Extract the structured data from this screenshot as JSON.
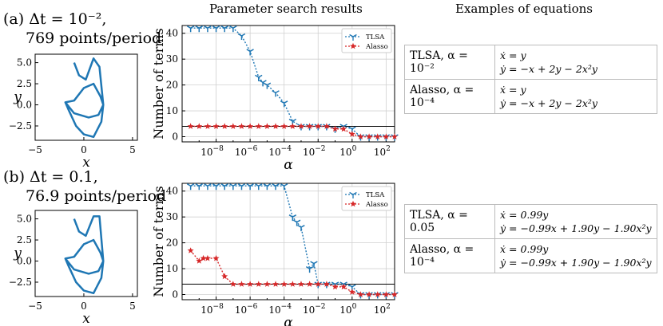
{
  "headers": {
    "col2": "Parameter search results",
    "col3": "Examples of equations"
  },
  "rows": [
    {
      "label_line1": "(a) Δt = 10⁻²,",
      "label_line2": "769 points/period",
      "table": [
        {
          "method": "TLSA, α = 10⁻²",
          "eq1": "ẋ = y",
          "eq2": "ẏ = −x + 2y − 2x²y"
        },
        {
          "method": "Alasso, α = 10⁻⁴",
          "eq1": "ẋ = y",
          "eq2": "ẏ = −x + 2y − 2x²y"
        }
      ]
    },
    {
      "label_line1": "(b) Δt = 0.1,",
      "label_line2": "76.9 points/period",
      "table": [
        {
          "method": "TLSA, α = 0.05",
          "eq1": "ẋ = 0.99y",
          "eq2": "ẏ = −0.99x + 1.90y − 1.90x²y"
        },
        {
          "method": "Alasso, α = 10⁻⁴",
          "eq1": "ẋ = 0.99y",
          "eq2": "ẏ = −0.99x + 1.90y − 1.90x²y"
        }
      ]
    }
  ],
  "chart_data": [
    {
      "type": "line",
      "panel": "a-phase",
      "xlabel": "x",
      "ylabel": "y",
      "xlim": [
        -5,
        5.5
      ],
      "ylim": [
        -4.2,
        6
      ],
      "xticks": [
        "−5",
        "0",
        "5"
      ],
      "yticks": [
        "−2.5",
        "0.0",
        "2.5",
        "5.0"
      ],
      "series": [
        {
          "color": "#1f77b4",
          "points": [
            [
              -1.0,
              5.0
            ],
            [
              -0.5,
              3.5
            ],
            [
              0.2,
              3.0
            ],
            [
              1.0,
              5.5
            ],
            [
              1.6,
              4.5
            ],
            [
              2.0,
              0.0
            ],
            [
              1.5,
              -1.2
            ],
            [
              0.5,
              -1.5
            ],
            [
              -1.0,
              -1.0
            ],
            [
              -1.9,
              0.3
            ],
            [
              -1.6,
              -0.5
            ],
            [
              -0.8,
              -2.5
            ],
            [
              0.0,
              -3.5
            ],
            [
              1.0,
              -3.8
            ],
            [
              1.8,
              -2.0
            ],
            [
              2.0,
              0.0
            ],
            [
              1.7,
              1.0
            ],
            [
              1.0,
              2.5
            ],
            [
              0.0,
              2.0
            ],
            [
              -1.0,
              0.5
            ],
            [
              -1.9,
              0.3
            ]
          ]
        }
      ]
    },
    {
      "type": "line",
      "panel": "a-search",
      "xlabel": "α",
      "ylabel": "Number of terms",
      "xlim": [
        -10,
        2.5
      ],
      "ylim": [
        -2,
        43
      ],
      "log_x": true,
      "xtick_exps": [
        "-8",
        "-6",
        "-4",
        "-2",
        "0",
        "2"
      ],
      "yticks": [
        "0",
        "10",
        "20",
        "30",
        "40"
      ],
      "legend_position": "top-right",
      "grid": true,
      "hline": 4,
      "series": [
        {
          "name": "TLSA",
          "color": "#1f77b4",
          "marker": "tri",
          "x": [
            -9.5,
            -9,
            -8.5,
            -8,
            -7.5,
            -7,
            -6.5,
            -6,
            -5.5,
            -5.25,
            -5,
            -4.5,
            -4,
            -3.5,
            -3,
            -2.5,
            -2,
            -1.5,
            -1,
            -0.5,
            0,
            0.5,
            1,
            1.5,
            2,
            2.5
          ],
          "values": [
            42,
            42,
            42,
            42,
            42,
            42,
            39,
            33,
            23,
            21,
            20,
            17,
            13,
            6,
            4,
            4,
            4,
            4,
            3,
            4,
            3,
            0,
            0,
            0,
            0,
            0
          ]
        },
        {
          "name": "Alasso",
          "color": "#d62728",
          "marker": "star",
          "x": [
            -9.5,
            -9,
            -8.5,
            -8,
            -7.5,
            -7,
            -6.5,
            -6,
            -5.5,
            -5,
            -4.5,
            -4,
            -3.5,
            -3,
            -2.5,
            -2,
            -1.5,
            -1,
            -0.5,
            0,
            0.5,
            1,
            1.5,
            2,
            2.5
          ],
          "values": [
            4,
            4,
            4,
            4,
            4,
            4,
            4,
            4,
            4,
            4,
            4,
            4,
            4,
            4,
            4,
            4,
            4,
            3,
            3,
            1,
            0,
            0,
            0,
            0,
            0
          ]
        }
      ]
    },
    {
      "type": "line",
      "panel": "b-phase",
      "xlabel": "x",
      "ylabel": "y",
      "xlim": [
        -5,
        5.5
      ],
      "ylim": [
        -4.2,
        6
      ],
      "xticks": [
        "−5",
        "0",
        "5"
      ],
      "yticks": [
        "−2.5",
        "0.0",
        "2.5",
        "5.0"
      ],
      "series": [
        {
          "color": "#1f77b4",
          "points": [
            [
              -1.0,
              5.0
            ],
            [
              -0.5,
              3.5
            ],
            [
              0.2,
              3.0
            ],
            [
              1.0,
              5.3
            ],
            [
              1.6,
              5.3
            ],
            [
              2.0,
              0.0
            ],
            [
              1.5,
              -1.2
            ],
            [
              0.5,
              -1.5
            ],
            [
              -1.0,
              -1.0
            ],
            [
              -1.9,
              0.3
            ],
            [
              -1.6,
              -0.5
            ],
            [
              -0.8,
              -2.5
            ],
            [
              0.0,
              -3.5
            ],
            [
              1.0,
              -3.8
            ],
            [
              1.8,
              -2.0
            ],
            [
              2.0,
              0.0
            ],
            [
              1.7,
              1.0
            ],
            [
              1.0,
              2.5
            ],
            [
              0.0,
              2.0
            ],
            [
              -1.0,
              0.5
            ],
            [
              -1.9,
              0.3
            ]
          ]
        }
      ]
    },
    {
      "type": "line",
      "panel": "b-search",
      "xlabel": "α",
      "ylabel": "Number of terms",
      "xlim": [
        -10,
        2.5
      ],
      "ylim": [
        -2,
        43
      ],
      "log_x": true,
      "xtick_exps": [
        "-8",
        "-6",
        "-4",
        "-2",
        "0",
        "2"
      ],
      "yticks": [
        "0",
        "10",
        "20",
        "30",
        "40"
      ],
      "legend_position": "top-right",
      "grid": true,
      "hline": 4,
      "series": [
        {
          "name": "TLSA",
          "color": "#1f77b4",
          "marker": "tri",
          "x": [
            -9.5,
            -9,
            -8.5,
            -8,
            -7.5,
            -7,
            -6.5,
            -6,
            -5.5,
            -5,
            -4.5,
            -4,
            -3.5,
            -3.25,
            -3,
            -2.5,
            -2.25,
            -2,
            -1.5,
            -1,
            -0.5,
            0,
            0.5,
            1,
            1.5,
            2,
            2.5
          ],
          "values": [
            42,
            42,
            42,
            42,
            42,
            42,
            42,
            42,
            42,
            42,
            42,
            42,
            30,
            28,
            26,
            10,
            12,
            4,
            4,
            4,
            4,
            3,
            0,
            0,
            0,
            0,
            0
          ]
        },
        {
          "name": "Alasso",
          "color": "#d62728",
          "marker": "star",
          "x": [
            -9.5,
            -9,
            -8.75,
            -8.5,
            -8,
            -7.5,
            -7,
            -6.5,
            -6,
            -5.5,
            -5,
            -4.5,
            -4,
            -3.5,
            -3,
            -2.5,
            -2,
            -1.5,
            -1,
            -0.5,
            0,
            0.5,
            1,
            1.5,
            2,
            2.5
          ],
          "values": [
            17,
            13,
            14,
            14,
            14,
            7,
            4,
            4,
            4,
            4,
            4,
            4,
            4,
            4,
            4,
            4,
            4,
            4,
            3,
            3,
            1,
            0,
            0,
            0,
            0,
            0
          ]
        }
      ]
    }
  ]
}
